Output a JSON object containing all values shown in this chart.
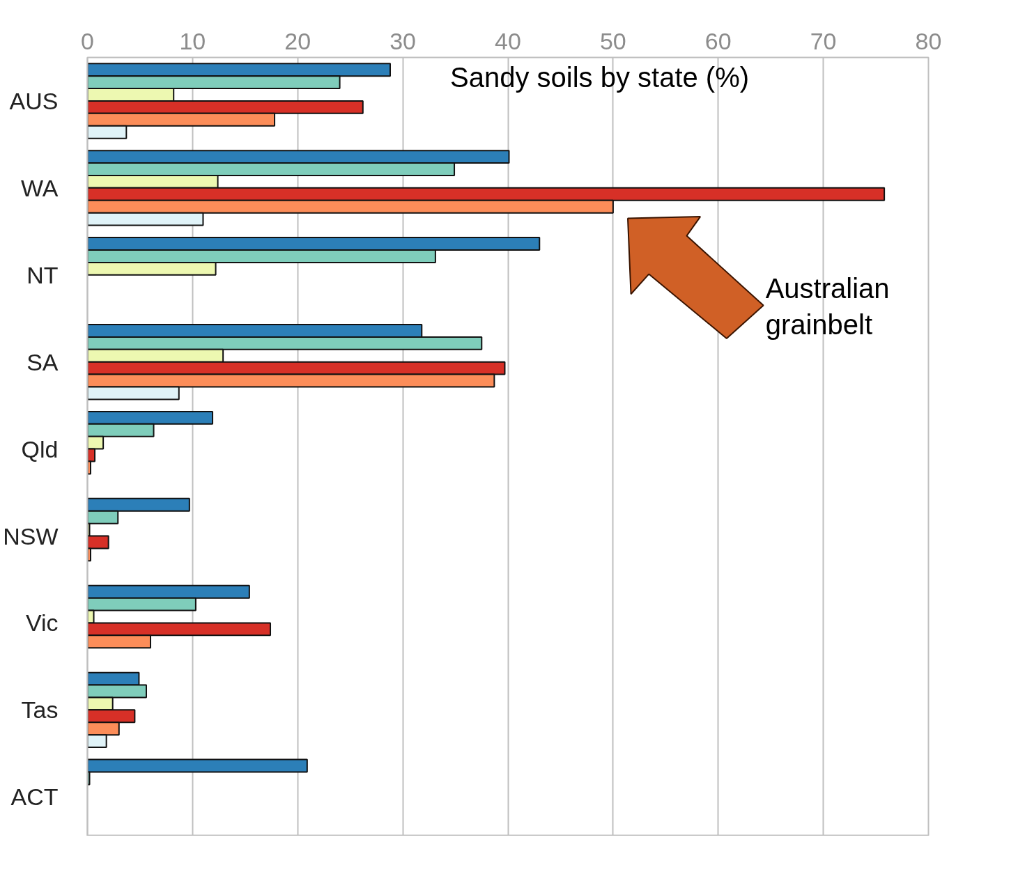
{
  "chart_data": {
    "type": "bar",
    "orientation": "horizontal",
    "title": "Sandy soils by state (%)",
    "categories": [
      "AUS",
      "WA",
      "NT",
      "SA",
      "Qld",
      "NSW",
      "Vic",
      "Tas",
      "ACT"
    ],
    "series": [
      {
        "color": "#2c7fb8",
        "values": [
          28.8,
          40.1,
          43.0,
          31.8,
          11.9,
          9.7,
          15.4,
          4.9,
          20.9
        ]
      },
      {
        "color": "#7fcdbb",
        "values": [
          24.0,
          34.9,
          33.1,
          37.5,
          6.3,
          2.9,
          10.3,
          5.6,
          0.2
        ]
      },
      {
        "color": "#edf8b1",
        "values": [
          8.2,
          12.4,
          12.2,
          12.9,
          1.5,
          0.2,
          0.6,
          2.4,
          null
        ]
      },
      {
        "color": "#d73027",
        "values": [
          26.2,
          75.8,
          null,
          39.7,
          0.7,
          2.0,
          17.4,
          4.5,
          null
        ]
      },
      {
        "color": "#fc8d59",
        "values": [
          17.8,
          50.0,
          null,
          38.7,
          0.3,
          0.3,
          6.0,
          3.0,
          null
        ]
      },
      {
        "color": "#e0f3f8",
        "values": [
          3.7,
          11.0,
          null,
          8.7,
          null,
          null,
          null,
          1.8,
          null
        ]
      }
    ],
    "xlim": [
      0,
      80
    ],
    "xticks": [
      0,
      10,
      20,
      30,
      40,
      50,
      60,
      70,
      80
    ],
    "grid": "x",
    "annotations": [
      "Australian grainbelt"
    ]
  }
}
